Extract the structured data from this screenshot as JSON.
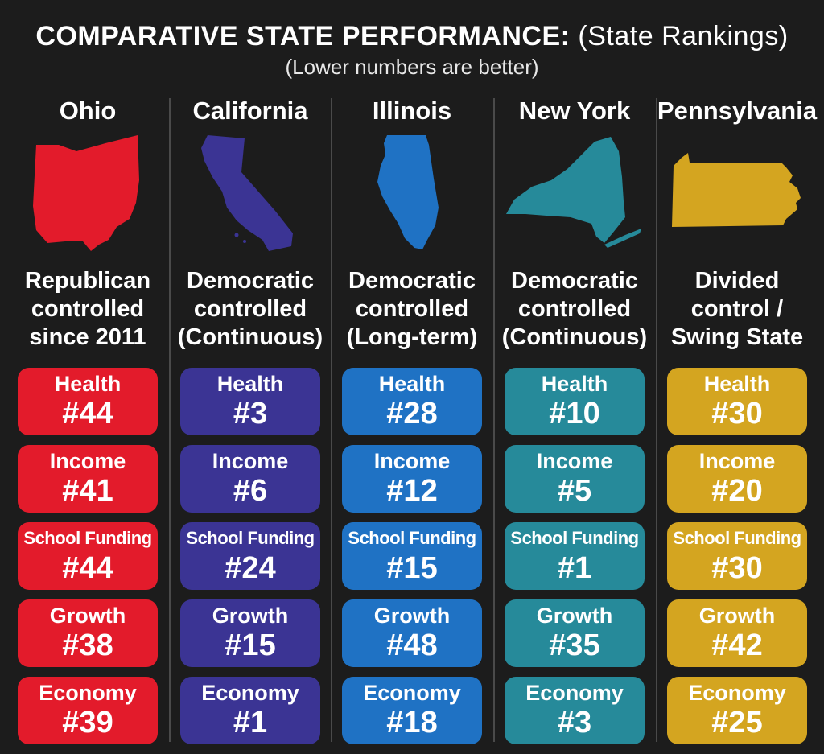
{
  "header": {
    "title_main": "COMPARATIVE STATE PERFORMANCE:",
    "title_sub": "(State Rankings)",
    "subtitle": "(Lower numbers are better)"
  },
  "states": [
    {
      "name": "Ohio",
      "color": "#e31b2b",
      "control": [
        "Republican",
        "controlled",
        "since 2011"
      ],
      "metrics": [
        {
          "label": "Health",
          "rank": "#44"
        },
        {
          "label": "Income",
          "rank": "#41"
        },
        {
          "label": "School Funding",
          "rank": "#44"
        },
        {
          "label": "Growth",
          "rank": "#38"
        },
        {
          "label": "Economy",
          "rank": "#39"
        }
      ]
    },
    {
      "name": "California",
      "color": "#3b3494",
      "control": [
        "Democratic",
        "controlled",
        "(Continuous)"
      ],
      "metrics": [
        {
          "label": "Health",
          "rank": "#3"
        },
        {
          "label": "Income",
          "rank": "#6"
        },
        {
          "label": "School Funding",
          "rank": "#24"
        },
        {
          "label": "Growth",
          "rank": "#15"
        },
        {
          "label": "Economy",
          "rank": "#1"
        }
      ]
    },
    {
      "name": "Illinois",
      "color": "#1f72c4",
      "control": [
        "Democratic",
        "controlled",
        "(Long-term)"
      ],
      "metrics": [
        {
          "label": "Health",
          "rank": "#28"
        },
        {
          "label": "Income",
          "rank": "#12"
        },
        {
          "label": "School Funding",
          "rank": "#15"
        },
        {
          "label": "Growth",
          "rank": "#48"
        },
        {
          "label": "Economy",
          "rank": "#18"
        }
      ]
    },
    {
      "name": "New York",
      "color": "#268a9a",
      "control": [
        "Democratic",
        "controlled",
        "(Continuous)"
      ],
      "metrics": [
        {
          "label": "Health",
          "rank": "#10"
        },
        {
          "label": "Income",
          "rank": "#5"
        },
        {
          "label": "School Funding",
          "rank": "#1"
        },
        {
          "label": "Growth",
          "rank": "#35"
        },
        {
          "label": "Economy",
          "rank": "#3"
        }
      ]
    },
    {
      "name": "Pennsylvania",
      "color": "#d4a520",
      "control": [
        "Divided",
        "control /",
        "Swing State"
      ],
      "metrics": [
        {
          "label": "Health",
          "rank": "#30"
        },
        {
          "label": "Income",
          "rank": "#20"
        },
        {
          "label": "School Funding",
          "rank": "#30"
        },
        {
          "label": "Growth",
          "rank": "#42"
        },
        {
          "label": "Economy",
          "rank": "#25"
        }
      ]
    }
  ]
}
